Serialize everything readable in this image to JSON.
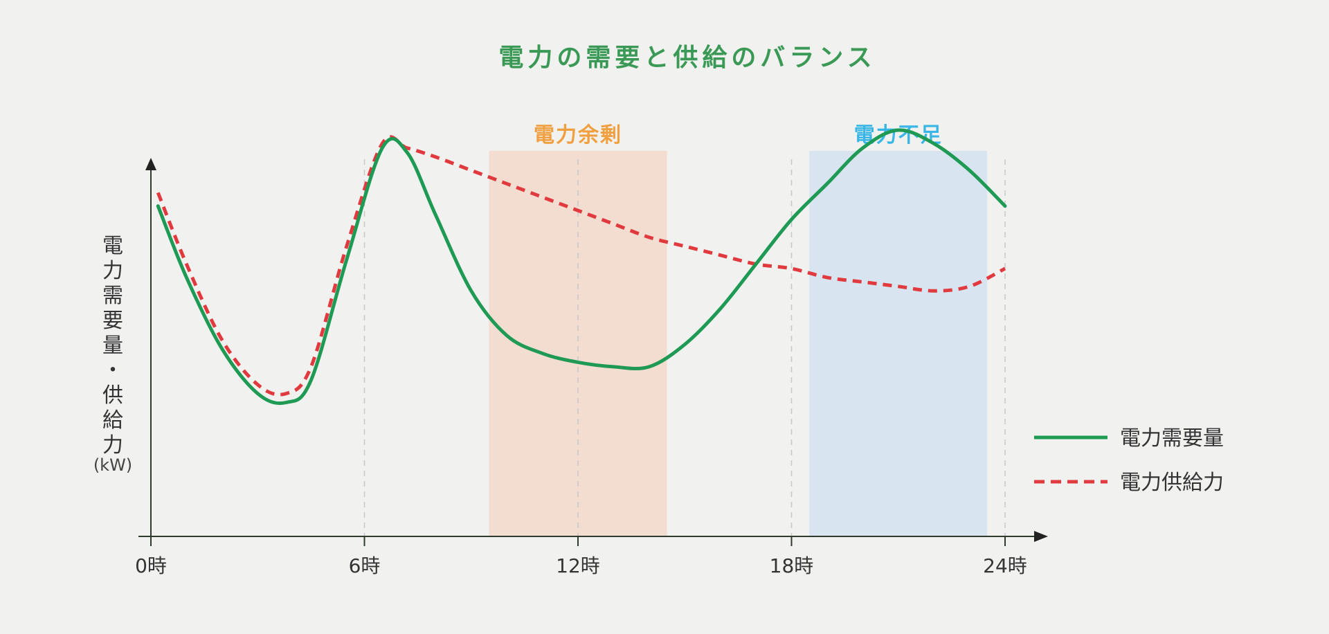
{
  "chart_data": {
    "type": "line",
    "title": "電力の需要と供給のバランス",
    "ylabel": "電力需要量・供給力",
    "yunit": "(kW)",
    "x_ticks": [
      "0時",
      "6時",
      "12時",
      "18時",
      "24時"
    ],
    "xlim": [
      0,
      24
    ],
    "ylim": [
      0,
      100
    ],
    "grid": "vertical-dashed",
    "legend_position": "right",
    "regions": [
      {
        "label": "電力余剰",
        "x_start": 9.5,
        "x_end": 14.5,
        "color": "#f2ddd0",
        "label_color": "#f0a040"
      },
      {
        "label": "電力不足",
        "x_start": 18.5,
        "x_end": 23.5,
        "color": "#d8e5f0",
        "label_color": "#3ab6e6"
      }
    ],
    "series": [
      {
        "name": "電力需要量",
        "style": "solid",
        "color": "#1f9a55",
        "x": [
          0.2,
          1,
          2,
          3,
          3.8,
          4.5,
          5.5,
          6.5,
          7.2,
          8,
          9,
          10,
          11,
          12,
          13,
          14,
          15,
          16,
          17,
          18,
          19,
          20,
          21,
          22,
          23,
          24
        ],
        "y": [
          74,
          58,
          42,
          32,
          30,
          35,
          62,
          87,
          86,
          72,
          55,
          45,
          41,
          39,
          38,
          38,
          43,
          51,
          61,
          71,
          79,
          87,
          91,
          88,
          82,
          74
        ]
      },
      {
        "name": "電力供給力",
        "style": "dashed",
        "color": "#e03a3e",
        "x": [
          0.2,
          1,
          2,
          3,
          3.8,
          4.5,
          5.5,
          6.5,
          7.2,
          8,
          9,
          10,
          11,
          12,
          13,
          14,
          15,
          16,
          17,
          18,
          19,
          20,
          21,
          22,
          23,
          24
        ],
        "y": [
          77,
          61,
          44,
          34,
          32,
          38,
          65,
          88,
          87,
          85,
          82,
          79,
          76,
          73,
          70,
          67,
          65,
          63,
          61,
          60,
          58,
          57,
          56,
          55,
          56,
          60
        ]
      }
    ]
  }
}
